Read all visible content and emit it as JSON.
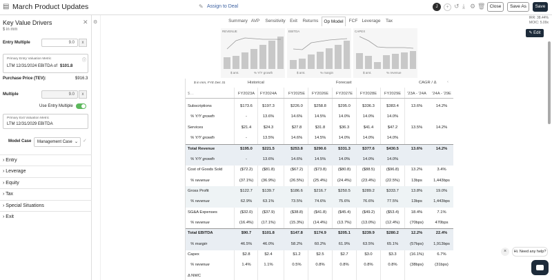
{
  "header": {
    "title": "March Product Updates",
    "assign": "Assign to Deal",
    "avatar": "J",
    "close": "Close",
    "save_as": "Save As",
    "save": "Save",
    "irr": "IRR: 38.44%",
    "moic": "MOIC: 5.09x"
  },
  "sidebar": {
    "title": "Key Value Drivers",
    "subtitle": "$ in mm",
    "entry_multiple_label": "Entry Multiple",
    "entry_multiple_value": "9.0",
    "x": "x",
    "primary_entry_label": "Primary Entry Valuation Metric",
    "primary_entry_metric": "LTM 12/31/2024 EBITDA",
    "of": "of",
    "primary_entry_amount": "$101.8",
    "purchase_price_label": "Purchase Price (TEV):",
    "purchase_price_value": "$916.3",
    "multiple_label": "Multiple",
    "multiple_value": "9.0",
    "use_entry_label": "Use Entry Multiple",
    "primary_exit_label": "Primary Exit Valuation Metric",
    "primary_exit_metric": "LTM 12/31/2029 EBITDA",
    "model_case_label": "Model Case",
    "model_case_value": "Management Case",
    "sections": [
      "Entry",
      "Leverage",
      "Equity",
      "Tax",
      "Special Situations",
      "Exit"
    ]
  },
  "tabs": [
    "Summary",
    "AVP",
    "Sensitivity",
    "Exit",
    "Returns",
    "Op Model",
    "FCF",
    "Leverage",
    "Tax"
  ],
  "active_tab": "Op Model",
  "charts": [
    {
      "title": "REVENUE",
      "legend": [
        "$ amt.",
        "% Y/Y growth"
      ]
    },
    {
      "title": "EBITDA",
      "legend": [
        "$ amt.",
        "% margin"
      ]
    },
    {
      "title": "CAPEX",
      "legend": [
        "$ amt.",
        "% revenue"
      ]
    }
  ],
  "edit_label": "Edit",
  "table": {
    "units": "$ in mm, FYE Dec 31",
    "historical": "Historical",
    "forecast": "Forecast",
    "cagr": "CAGR / Δ",
    "columns": [
      "FY2023A",
      "FY2024A",
      "FY2025E",
      "FY2026E",
      "FY2027E",
      "FY2028E",
      "FY2029E",
      "'23A - '24A",
      "'24A - '29E"
    ],
    "rows": [
      {
        "label": "Subscriptions",
        "vals": [
          "$173.6",
          "$197.3",
          "$226.0",
          "$258.8",
          "$295.0",
          "$336.3",
          "$383.4",
          "13.6%",
          "14.2%"
        ],
        "style": "plain"
      },
      {
        "label": "% Y/Y growth",
        "vals": [
          "-",
          "13.6%",
          "14.6%",
          "14.5%",
          "14.0%",
          "14.0%",
          "14.0%",
          "",
          ""
        ],
        "style": "sub"
      },
      {
        "label": "Services",
        "vals": [
          "$21.4",
          "$24.3",
          "$27.8",
          "$31.8",
          "$36.3",
          "$41.4",
          "$47.2",
          "13.5%",
          "14.2%"
        ],
        "style": "plain"
      },
      {
        "label": "% Y/Y growth",
        "vals": [
          "-",
          "13.5%",
          "14.6%",
          "14.5%",
          "14.0%",
          "14.0%",
          "14.0%",
          "",
          ""
        ],
        "style": "sub"
      },
      {
        "label": "Total Revenue",
        "vals": [
          "$195.0",
          "$221.5",
          "$253.8",
          "$290.6",
          "$331.3",
          "$377.6",
          "$430.5",
          "13.6%",
          "14.2%"
        ],
        "style": "total"
      },
      {
        "label": "% Y/Y growth",
        "vals": [
          "-",
          "13.6%",
          "14.6%",
          "14.5%",
          "14.0%",
          "14.0%",
          "14.0%",
          "",
          ""
        ],
        "style": "totalsub"
      },
      {
        "label": "Cost of Goods Sold",
        "vals": [
          "($72.2)",
          "($81.8)",
          "($67.2)",
          "($73.8)",
          "($80.8)",
          "($88.5)",
          "($96.8)",
          "13.2%",
          "3.4%"
        ],
        "style": "plain"
      },
      {
        "label": "% revenue",
        "vals": [
          "(37.1%)",
          "(36.9%)",
          "(26.5%)",
          "(25.4%)",
          "(24.4%)",
          "(23.4%)",
          "(22.5%)",
          "13bps",
          "1,443bps"
        ],
        "style": "sub"
      },
      {
        "label": "Gross Profit",
        "vals": [
          "$122.7",
          "$139.7",
          "$186.6",
          "$216.7",
          "$250.5",
          "$289.2",
          "$333.7",
          "13.8%",
          "19.0%"
        ],
        "style": "band"
      },
      {
        "label": "% revenue",
        "vals": [
          "62.9%",
          "63.1%",
          "73.5%",
          "74.6%",
          "75.6%",
          "76.6%",
          "77.5%",
          "13bps",
          "1,443bps"
        ],
        "style": "bandsub"
      },
      {
        "label": "SG&A Expenses",
        "vals": [
          "($32.0)",
          "($37.9)",
          "($38.8)",
          "($41.8)",
          "($45.4)",
          "($49.2)",
          "($53.4)",
          "18.4%",
          "7.1%"
        ],
        "style": "plain"
      },
      {
        "label": "% revenue",
        "vals": [
          "(16.4%)",
          "(17.1%)",
          "(15.3%)",
          "(14.4%)",
          "(13.7%)",
          "(13.0%)",
          "(12.4%)",
          "(70bps)",
          "470bps"
        ],
        "style": "sub"
      },
      {
        "label": "Total EBITDA",
        "vals": [
          "$90.7",
          "$101.8",
          "$147.8",
          "$174.9",
          "$205.1",
          "$239.9",
          "$280.2",
          "12.2%",
          "22.4%"
        ],
        "style": "total"
      },
      {
        "label": "% margin",
        "vals": [
          "46.5%",
          "46.0%",
          "58.2%",
          "60.2%",
          "61.9%",
          "63.5%",
          "65.1%",
          "(57bps)",
          "1,913bps"
        ],
        "style": "totalsub"
      },
      {
        "label": "Capex",
        "vals": [
          "$2.8",
          "$2.4",
          "$1.2",
          "$2.5",
          "$2.7",
          "$3.0",
          "$3.3",
          "(16.1%)",
          "6.7%"
        ],
        "style": "plain"
      },
      {
        "label": "% revenue",
        "vals": [
          "1.4%",
          "1.1%",
          "0.5%",
          "0.8%",
          "0.8%",
          "0.8%",
          "0.8%",
          "(38bps)",
          "(31bps)"
        ],
        "style": "sub"
      },
      {
        "label": "Δ NWC",
        "vals": [
          "",
          "",
          "",
          "",
          "",
          "",
          "",
          "",
          ""
        ],
        "style": "plain"
      }
    ]
  },
  "chat": {
    "message": "Hi. Need any help?",
    "close": "×"
  }
}
